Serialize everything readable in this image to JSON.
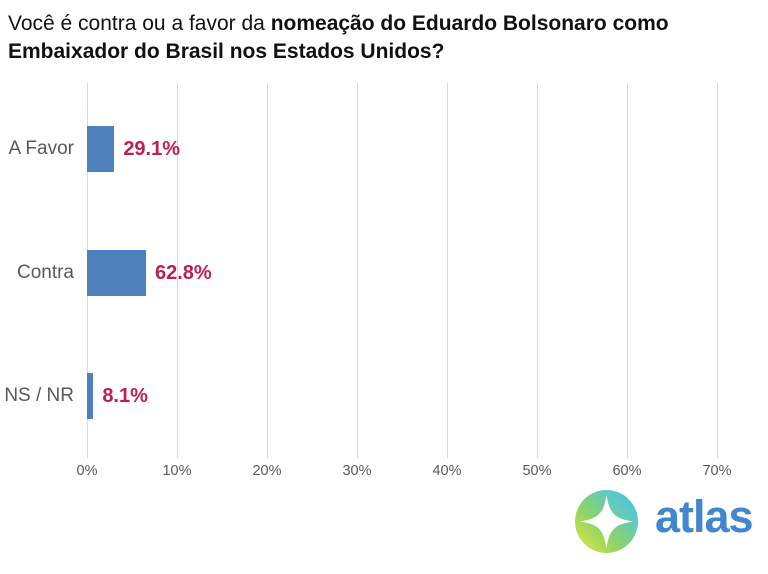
{
  "title": {
    "regular": "Você é contra ou a favor da ",
    "bold_line1": "nomeação do Eduardo Bolsonaro como",
    "bold_line2": "Embaixador do Brasil nos Estados Unidos?"
  },
  "chart_data": {
    "type": "bar",
    "orientation": "horizontal",
    "title": "Você é contra ou a favor da nomeação do Eduardo Bolsonaro como Embaixador do Brasil nos Estados Unidos?",
    "categories": [
      "A Favor",
      "Contra",
      "NS / NR"
    ],
    "values": [
      29.1,
      62.8,
      8.1
    ],
    "value_labels": [
      "29.1%",
      "62.8%",
      "8.1%"
    ],
    "xlim": [
      0,
      70
    ],
    "x_ticks": [
      "0%",
      "10%",
      "20%",
      "30%",
      "40%",
      "50%",
      "60%",
      "70%"
    ],
    "grid": true,
    "legend": false,
    "bar_color": "#4f81bd",
    "value_label_color": "#c01e4f",
    "axis_text_color": "#595959"
  },
  "branding": {
    "logo_text": "atlas",
    "logo_text_color": "#4287cd",
    "logo_icon": "compass-star",
    "logo_gradient_start": "#eae73e",
    "logo_gradient_end": "#4fc6de"
  }
}
